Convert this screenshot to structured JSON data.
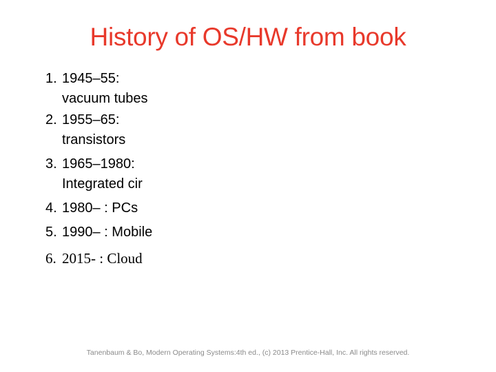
{
  "slide": {
    "title": "History of OS/HW from book",
    "items": [
      {
        "number": "1.",
        "lines": [
          "1945–55:",
          "vacuum tubes"
        ]
      },
      {
        "number": "2.",
        "lines": [
          "1955–65:",
          "transistors"
        ]
      },
      {
        "number": "3.",
        "lines": [
          "1965–1980:",
          "Integrated cir"
        ]
      },
      {
        "number": "4.",
        "lines": [
          "1980– : PCs"
        ]
      },
      {
        "number": "5.",
        "lines": [
          "1990– : Mobile"
        ]
      },
      {
        "number": "6.",
        "lines": [
          "2015- : Cloud"
        ]
      }
    ],
    "footer": "Tanenbaum & Bo, Modern  Operating Systems:4th ed., (c) 2013 Prentice-Hall, Inc. All rights reserved.",
    "colors": {
      "title": "#e8392b",
      "body_text": "#000000",
      "footer": "#8a8a8a",
      "background": "#ffffff"
    }
  }
}
